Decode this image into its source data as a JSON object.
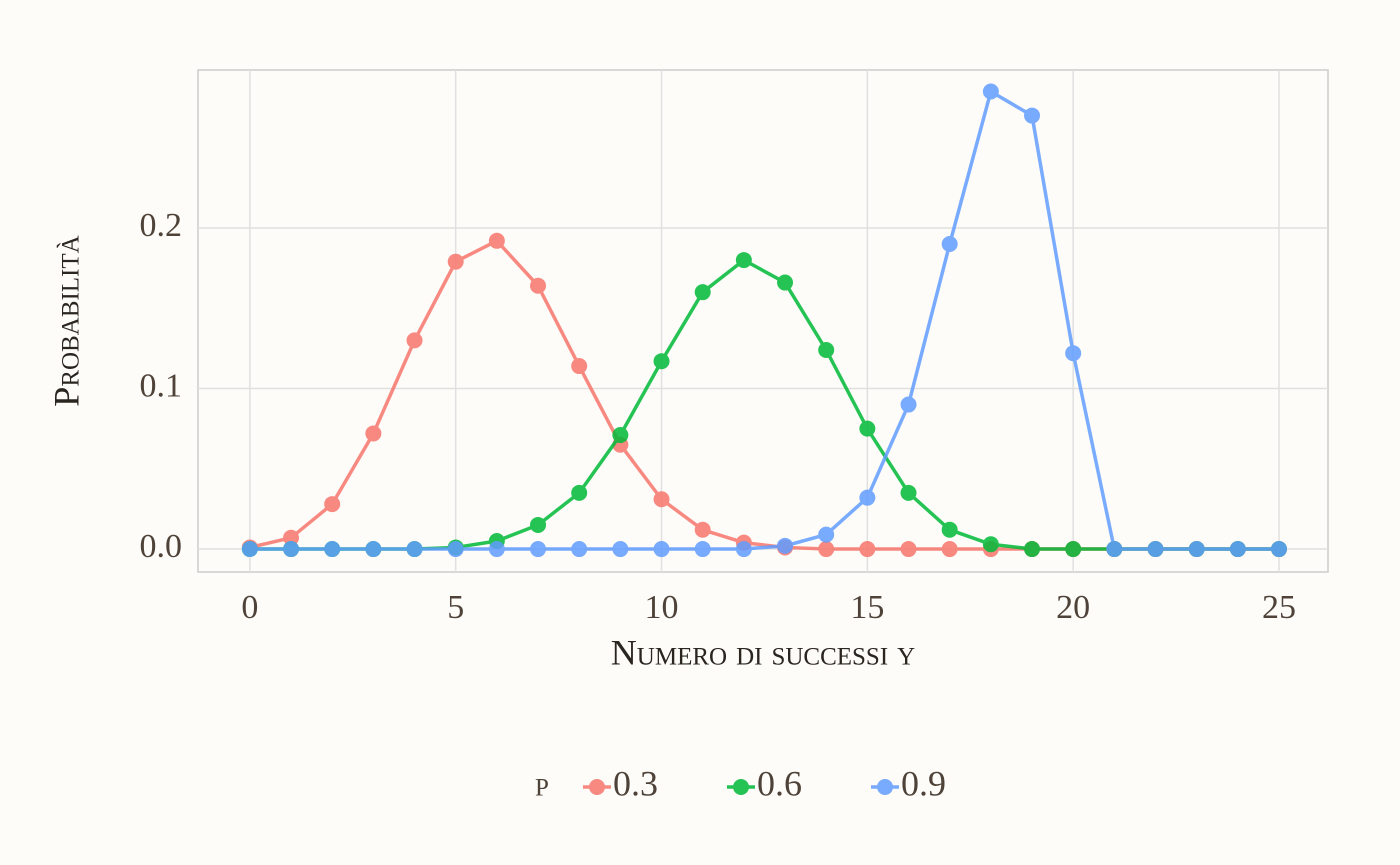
{
  "chart_data": {
    "type": "line",
    "x_label": "Numero di successi y",
    "y_label": "Probabilità",
    "legend_title": "p",
    "legend_position": "bottom",
    "grid": true,
    "x": [
      0,
      1,
      2,
      3,
      4,
      5,
      6,
      7,
      8,
      9,
      10,
      11,
      12,
      13,
      14,
      15,
      16,
      17,
      18,
      19,
      20,
      21,
      22,
      23,
      24,
      25
    ],
    "series": [
      {
        "name": "0.3",
        "color": "#F8766D",
        "values": [
          0.001,
          0.007,
          0.028,
          0.072,
          0.13,
          0.179,
          0.192,
          0.164,
          0.114,
          0.065,
          0.031,
          0.012,
          0.004,
          0.001,
          0,
          0,
          0,
          0,
          0,
          0,
          0,
          0,
          0,
          0,
          0,
          0
        ]
      },
      {
        "name": "0.6",
        "color": "#00BA38",
        "values": [
          0,
          0,
          0,
          0,
          0,
          0.001,
          0.005,
          0.015,
          0.035,
          0.071,
          0.117,
          0.16,
          0.18,
          0.166,
          0.124,
          0.075,
          0.035,
          0.012,
          0.003,
          0,
          0,
          0,
          0,
          0,
          0,
          0
        ]
      },
      {
        "name": "0.9",
        "color": "#619CFF",
        "values": [
          0,
          0,
          0,
          0,
          0,
          0,
          0,
          0,
          0,
          0,
          0,
          0,
          0,
          0.002,
          0.009,
          0.032,
          0.09,
          0.19,
          0.285,
          0.27,
          0.122,
          0,
          0,
          0,
          0,
          0
        ]
      }
    ],
    "xlim": [
      -1.26,
      26.19
    ],
    "xticks": [
      0,
      5,
      10,
      15,
      20,
      25
    ],
    "ylim": [
      -0.0143,
      0.2984
    ],
    "yticks": [
      {
        "value": 0,
        "label": "0.0"
      },
      0.1,
      0.2
    ]
  }
}
